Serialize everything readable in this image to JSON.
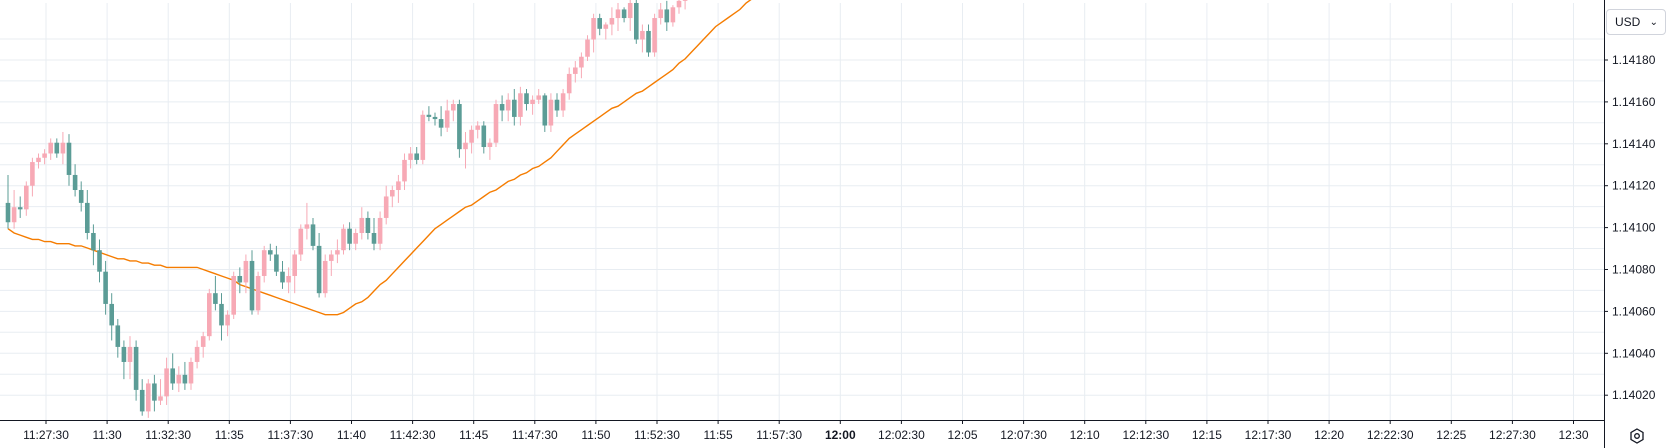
{
  "currency": {
    "selected": "USD",
    "icon": "chevron-down-icon"
  },
  "settings": {
    "icon": "settings-gear-icon"
  },
  "chart_data": {
    "type": "candlestick",
    "x_tick_labels": [
      "11:27:30",
      "11:30",
      "11:32:30",
      "11:35",
      "11:37:30",
      "11:40",
      "11:42:30",
      "11:45",
      "11:47:30",
      "11:50",
      "11:52:30",
      "11:55",
      "11:57:30",
      "12:00",
      "12:02:30",
      "12:05",
      "12:07:30",
      "12:10",
      "12:12:30",
      "12:15",
      "12:17:30",
      "12:20",
      "12:22:30",
      "12:25",
      "12:27:30",
      "12:30"
    ],
    "x_bold_label": "12:00",
    "y_tick_labels": [
      "1.14180",
      "1.14160",
      "1.14140",
      "1.14120",
      "1.14100",
      "1.14080",
      "1.14060",
      "1.14040",
      "1.14020"
    ],
    "ylim": [
      1.14011,
      1.14205
    ],
    "colors": {
      "up": "#f7a9b5",
      "down": "#5b9c96",
      "ma": "#f57c00",
      "grid": "#e8edf2"
    },
    "candles": [
      [
        1.14112,
        1.14125,
        1.141,
        1.14103
      ],
      [
        1.14103,
        1.14118,
        1.141,
        1.1411
      ],
      [
        1.1411,
        1.14115,
        1.14105,
        1.14109
      ],
      [
        1.14109,
        1.14122,
        1.14106,
        1.1412
      ],
      [
        1.1412,
        1.14133,
        1.14115,
        1.14131
      ],
      [
        1.14131,
        1.14135,
        1.14128,
        1.14133
      ],
      [
        1.14133,
        1.14137,
        1.1413,
        1.14135
      ],
      [
        1.14135,
        1.14142,
        1.14132,
        1.1414
      ],
      [
        1.1414,
        1.14142,
        1.14133,
        1.14135
      ],
      [
        1.14135,
        1.14145,
        1.1413,
        1.1414
      ],
      [
        1.1414,
        1.14144,
        1.1412,
        1.14125
      ],
      [
        1.14125,
        1.1413,
        1.14115,
        1.14118
      ],
      [
        1.14118,
        1.14122,
        1.14108,
        1.14112
      ],
      [
        1.14112,
        1.14118,
        1.14095,
        1.14098
      ],
      [
        1.14098,
        1.14102,
        1.14083,
        1.1409
      ],
      [
        1.1409,
        1.14095,
        1.14075,
        1.1408
      ],
      [
        1.1408,
        1.14085,
        1.1406,
        1.14065
      ],
      [
        1.14065,
        1.1407,
        1.14048,
        1.14055
      ],
      [
        1.14055,
        1.14058,
        1.1404,
        1.14045
      ],
      [
        1.14045,
        1.14048,
        1.1403,
        1.14038
      ],
      [
        1.14038,
        1.1405,
        1.1403,
        1.14045
      ],
      [
        1.14045,
        1.14048,
        1.1402,
        1.14025
      ],
      [
        1.14025,
        1.1403,
        1.14013,
        1.14015
      ],
      [
        1.14015,
        1.1403,
        1.14012,
        1.14028
      ],
      [
        1.14028,
        1.14032,
        1.14015,
        1.1402
      ],
      [
        1.1402,
        1.1403,
        1.14018,
        1.14022
      ],
      [
        1.14022,
        1.1404,
        1.14018,
        1.14035
      ],
      [
        1.14035,
        1.14042,
        1.14025,
        1.14028
      ],
      [
        1.14028,
        1.14036,
        1.14024,
        1.14032
      ],
      [
        1.14032,
        1.14038,
        1.14025,
        1.14028
      ],
      [
        1.14028,
        1.1404,
        1.14025,
        1.14038
      ],
      [
        1.14038,
        1.14048,
        1.14035,
        1.14045
      ],
      [
        1.14045,
        1.14052,
        1.1404,
        1.1405
      ],
      [
        1.1405,
        1.14072,
        1.14048,
        1.1407
      ],
      [
        1.1407,
        1.14078,
        1.14062,
        1.14065
      ],
      [
        1.14065,
        1.1407,
        1.14048,
        1.14055
      ],
      [
        1.14055,
        1.14062,
        1.1405,
        1.1406
      ],
      [
        1.1406,
        1.1408,
        1.14058,
        1.14078
      ],
      [
        1.14078,
        1.14082,
        1.1407,
        1.14075
      ],
      [
        1.14075,
        1.14088,
        1.1407,
        1.14085
      ],
      [
        1.14085,
        1.1409,
        1.1406,
        1.14062
      ],
      [
        1.14062,
        1.1408,
        1.1406,
        1.14078
      ],
      [
        1.14078,
        1.14092,
        1.14075,
        1.1409
      ],
      [
        1.1409,
        1.14093,
        1.14085,
        1.14088
      ],
      [
        1.14088,
        1.14092,
        1.14078,
        1.1408
      ],
      [
        1.1408,
        1.14085,
        1.14072,
        1.14075
      ],
      [
        1.14075,
        1.14082,
        1.1407,
        1.14078
      ],
      [
        1.14078,
        1.1409,
        1.1407,
        1.14088
      ],
      [
        1.14088,
        1.14102,
        1.14085,
        1.141
      ],
      [
        1.141,
        1.14112,
        1.14095,
        1.14102
      ],
      [
        1.14102,
        1.14105,
        1.1409,
        1.14092
      ],
      [
        1.14092,
        1.14098,
        1.14068,
        1.1407
      ],
      [
        1.1407,
        1.14088,
        1.14068,
        1.14085
      ],
      [
        1.14085,
        1.1409,
        1.14078,
        1.14088
      ],
      [
        1.14088,
        1.14095,
        1.14084,
        1.1409
      ],
      [
        1.1409,
        1.14102,
        1.14088,
        1.141
      ],
      [
        1.141,
        1.14103,
        1.1409,
        1.14093
      ],
      [
        1.14093,
        1.141,
        1.1409,
        1.14098
      ],
      [
        1.14098,
        1.1411,
        1.14095,
        1.14105
      ],
      [
        1.14105,
        1.14108,
        1.14095,
        1.14098
      ],
      [
        1.14098,
        1.14105,
        1.1409,
        1.14093
      ],
      [
        1.14093,
        1.14108,
        1.1409,
        1.14105
      ],
      [
        1.14105,
        1.1412,
        1.14102,
        1.14115
      ],
      [
        1.14115,
        1.1412,
        1.1411,
        1.14118
      ],
      [
        1.14118,
        1.14125,
        1.14112,
        1.14122
      ],
      [
        1.14122,
        1.14135,
        1.14118,
        1.14132
      ],
      [
        1.14132,
        1.14138,
        1.14128,
        1.14135
      ],
      [
        1.14135,
        1.14138,
        1.1413,
        1.14132
      ],
      [
        1.14132,
        1.14155,
        1.1413,
        1.14153
      ],
      [
        1.14153,
        1.14157,
        1.1415,
        1.14152
      ],
      [
        1.14152,
        1.14154,
        1.14148,
        1.14151
      ],
      [
        1.14151,
        1.14157,
        1.14143,
        1.14147
      ],
      [
        1.14147,
        1.1416,
        1.14145,
        1.14155
      ],
      [
        1.14155,
        1.1416,
        1.1415,
        1.14158
      ],
      [
        1.14158,
        1.1416,
        1.14133,
        1.14137
      ],
      [
        1.14137,
        1.14145,
        1.14128,
        1.1414
      ],
      [
        1.1414,
        1.14148,
        1.14135,
        1.14146
      ],
      [
        1.14146,
        1.1415,
        1.14142,
        1.14148
      ],
      [
        1.14148,
        1.1415,
        1.14135,
        1.14138
      ],
      [
        1.14138,
        1.14142,
        1.14132,
        1.1414
      ],
      [
        1.1414,
        1.1416,
        1.14138,
        1.14158
      ],
      [
        1.14158,
        1.14162,
        1.1415,
        1.14155
      ],
      [
        1.14155,
        1.14163,
        1.1415,
        1.1416
      ],
      [
        1.1416,
        1.14165,
        1.14148,
        1.14152
      ],
      [
        1.14152,
        1.14166,
        1.14148,
        1.14163
      ],
      [
        1.14163,
        1.14165,
        1.14155,
        1.14158
      ],
      [
        1.14158,
        1.14162,
        1.14153,
        1.1416
      ],
      [
        1.1416,
        1.14165,
        1.14158,
        1.14162
      ],
      [
        1.14162,
        1.14163,
        1.14145,
        1.14148
      ],
      [
        1.14148,
        1.14163,
        1.14145,
        1.1416
      ],
      [
        1.1416,
        1.14163,
        1.14152,
        1.14155
      ],
      [
        1.14155,
        1.14165,
        1.14152,
        1.14163
      ],
      [
        1.14163,
        1.14175,
        1.1416,
        1.14172
      ],
      [
        1.14172,
        1.14178,
        1.14168,
        1.14175
      ],
      [
        1.14175,
        1.14182,
        1.1417,
        1.1418
      ],
      [
        1.1418,
        1.1419,
        1.14178,
        1.14188
      ],
      [
        1.14188,
        1.142,
        1.14182,
        1.14198
      ],
      [
        1.14198,
        1.142,
        1.1419,
        1.14193
      ],
      [
        1.14193,
        1.14196,
        1.14188,
        1.14195
      ],
      [
        1.14195,
        1.14203,
        1.1419,
        1.14198
      ],
      [
        1.14198,
        1.14205,
        1.14192,
        1.14202
      ],
      [
        1.14202,
        1.14203,
        1.14196,
        1.14198
      ],
      [
        1.14198,
        1.14207,
        1.14192,
        1.14205
      ],
      [
        1.14205,
        1.14207,
        1.14186,
        1.14188
      ],
      [
        1.14188,
        1.14195,
        1.14182,
        1.14192
      ],
      [
        1.14192,
        1.14195,
        1.1418,
        1.14182
      ],
      [
        1.14182,
        1.142,
        1.1418,
        1.14198
      ],
      [
        1.14198,
        1.14205,
        1.14195,
        1.14202
      ],
      [
        1.14202,
        1.14206,
        1.14192,
        1.14196
      ],
      [
        1.14196,
        1.14204,
        1.14194,
        1.14203
      ],
      [
        1.14203,
        1.14208,
        1.142,
        1.14206
      ],
      [
        1.14206,
        1.1421,
        1.14202,
        1.14208
      ]
    ],
    "moving_average": [
      1.141,
      1.14098,
      1.14097,
      1.14096,
      1.14095,
      1.14095,
      1.14094,
      1.14094,
      1.14093,
      1.14093,
      1.14093,
      1.14092,
      1.14092,
      1.14091,
      1.1409,
      1.14089,
      1.14088,
      1.14087,
      1.14086,
      1.14086,
      1.14085,
      1.14085,
      1.14084,
      1.14084,
      1.14083,
      1.14083,
      1.14082,
      1.14082,
      1.14082,
      1.14082,
      1.14082,
      1.14082,
      1.14081,
      1.1408,
      1.14079,
      1.14078,
      1.14077,
      1.14076,
      1.14074,
      1.14073,
      1.14072,
      1.14071,
      1.1407,
      1.14069,
      1.14068,
      1.14067,
      1.14066,
      1.14065,
      1.14064,
      1.14063,
      1.14062,
      1.14061,
      1.1406,
      1.1406,
      1.1406,
      1.14061,
      1.14063,
      1.14065,
      1.14066,
      1.14068,
      1.14071,
      1.14074,
      1.14076,
      1.14079,
      1.14082,
      1.14085,
      1.14088,
      1.14091,
      1.14094,
      1.14097,
      1.141,
      1.14102,
      1.14104,
      1.14106,
      1.14108,
      1.1411,
      1.14111,
      1.14113,
      1.14115,
      1.14117,
      1.14118,
      1.1412,
      1.14122,
      1.14123,
      1.14125,
      1.14126,
      1.14128,
      1.14129,
      1.14131,
      1.14133,
      1.14136,
      1.14139,
      1.14142,
      1.14144,
      1.14146,
      1.14148,
      1.1415,
      1.14152,
      1.14154,
      1.14156,
      1.14157,
      1.14159,
      1.14161,
      1.14163,
      1.14164,
      1.14166,
      1.14168,
      1.1417,
      1.14172,
      1.14174,
      1.14177,
      1.14179,
      1.14182,
      1.14185,
      1.14188,
      1.14191,
      1.14194,
      1.14196,
      1.14198,
      1.142,
      1.14202,
      1.14205,
      1.14207,
      1.1421
    ]
  }
}
